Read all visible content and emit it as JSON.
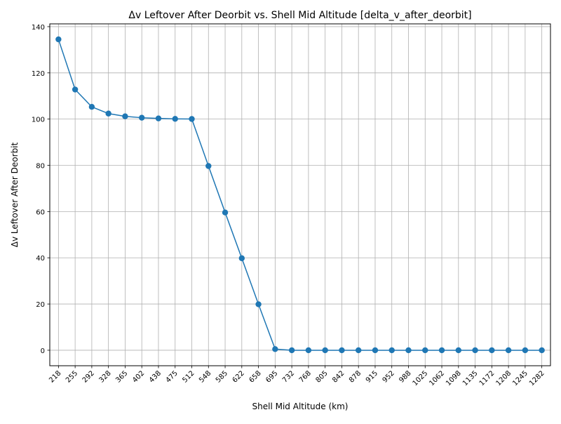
{
  "chart_data": {
    "type": "line",
    "title": "Δv Leftover After Deorbit vs. Shell Mid Altitude [delta_v_after_deorbit]",
    "xlabel": "Shell Mid Altitude (km)",
    "ylabel": "Δv Leftover After Deorbit",
    "x": [
      "218",
      "255",
      "292",
      "328",
      "365",
      "402",
      "438",
      "475",
      "512",
      "548",
      "585",
      "622",
      "658",
      "695",
      "732",
      "768",
      "805",
      "842",
      "878",
      "915",
      "952",
      "988",
      "1025",
      "1062",
      "1098",
      "1135",
      "1172",
      "1208",
      "1245",
      "1282"
    ],
    "series": [
      {
        "values": [
          134.5,
          112.8,
          105.3,
          102.4,
          101.2,
          100.6,
          100.3,
          100.1,
          100.05,
          79.7,
          59.6,
          39.8,
          19.9,
          0.5,
          0,
          0,
          0,
          0,
          0,
          0,
          0,
          0,
          0,
          0,
          0,
          0,
          0,
          0,
          0,
          0
        ],
        "color": "#1f77b4",
        "marker": "circle"
      }
    ],
    "ylim": [
      -6.7,
      141.2
    ],
    "yticks": [
      0,
      20,
      40,
      60,
      80,
      100,
      120,
      140
    ],
    "xtick_rotation": 45,
    "grid": true,
    "legend": "none"
  }
}
